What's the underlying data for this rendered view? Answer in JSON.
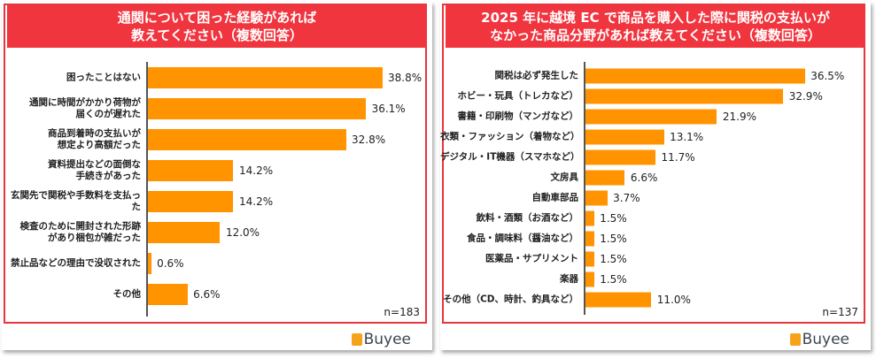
{
  "chart_data": [
    {
      "type": "bar",
      "orientation": "horizontal",
      "title_lines": [
        "通関について困った経験があれば",
        "教えてください（複数回答）"
      ],
      "categories": [
        [
          "困ったことはない"
        ],
        [
          "通関に時間がかかり荷物が",
          "届くのが遅れた"
        ],
        [
          "商品到着時の支払いが",
          "想定より高額だった"
        ],
        [
          "資料提出などの面倒な",
          "手続きがあった"
        ],
        [
          "玄関先で関税や手数料を支払った"
        ],
        [
          "検査のために開封された形跡",
          "があり梱包が雑だった"
        ],
        [
          "禁止品などの理由で没収された"
        ],
        [
          "その他"
        ]
      ],
      "values": [
        38.8,
        36.1,
        32.8,
        14.2,
        14.2,
        12.0,
        0.6,
        6.6
      ],
      "value_labels": [
        "38.8%",
        "36.1%",
        "32.8%",
        "14.2%",
        "14.2%",
        "12.0%",
        "0.6%",
        "6.6%"
      ],
      "n_label": "n=183",
      "bar_color": "#ff9400",
      "logo": "Buyee"
    },
    {
      "type": "bar",
      "orientation": "horizontal",
      "title_lines": [
        "2025 年に越境 EC で商品を購入した際に関税の支払いが",
        "なかった商品分野があれば教えてください（複数回答）"
      ],
      "categories": [
        [
          "関税は必ず発生した"
        ],
        [
          "ホビー・玩具（トレカなど）"
        ],
        [
          "書籍・印刷物（マンガなど）"
        ],
        [
          "衣類・ファッション（着物など）"
        ],
        [
          "デジタル・IT機器（スマホなど）"
        ],
        [
          "文房具"
        ],
        [
          "自動車部品"
        ],
        [
          "飲料・酒類（お酒など）"
        ],
        [
          "食品・調味料（醤油など）"
        ],
        [
          "医薬品・サプリメント"
        ],
        [
          "楽器"
        ],
        [
          "その他（CD、時計、釣具など）"
        ]
      ],
      "values": [
        36.5,
        32.9,
        21.9,
        13.1,
        11.7,
        6.6,
        3.7,
        1.5,
        1.5,
        1.5,
        1.5,
        11.0
      ],
      "value_labels": [
        "36.5%",
        "32.9%",
        "21.9%",
        "13.1%",
        "11.7%",
        "6.6%",
        "3.7%",
        "1.5%",
        "1.5%",
        "1.5%",
        "1.5%",
        "11.0%"
      ],
      "n_label": "n=137",
      "bar_color": "#ff9400",
      "logo": "Buyee"
    }
  ]
}
